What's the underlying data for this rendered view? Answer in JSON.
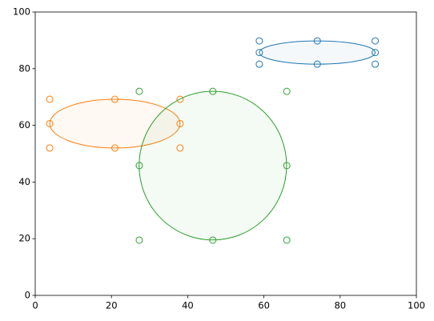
{
  "chart_data": {
    "type": "scatter",
    "xlim": [
      0,
      100
    ],
    "ylim": [
      0,
      100
    ],
    "xticks": [
      0,
      20,
      40,
      60,
      80,
      100
    ],
    "yticks": [
      0,
      20,
      40,
      60,
      80,
      100
    ],
    "series": [
      {
        "color": "#1f77b4",
        "x": [
          58.8,
          74,
          89.2,
          58.8,
          89.2,
          58.8,
          74,
          89.2
        ],
        "y": [
          89.8,
          89.8,
          89.8,
          85.7,
          85.7,
          81.6,
          81.6,
          81.6
        ],
        "ellipse": {
          "cx": 74,
          "cy": 85.7,
          "rx": 15.2,
          "ry": 4.1
        }
      },
      {
        "color": "#ff7f0e",
        "x": [
          3.8,
          20.9,
          38,
          3.8,
          38,
          3.8,
          20.9,
          38
        ],
        "y": [
          69.2,
          69.2,
          69.2,
          60.6,
          60.6,
          52,
          52,
          52
        ],
        "ellipse": {
          "cx": 20.9,
          "cy": 60.6,
          "rx": 17.1,
          "ry": 8.6
        }
      },
      {
        "color": "#2ca02c",
        "x": [
          27.3,
          46.6,
          66,
          27.3,
          66,
          27.3,
          46.6,
          66
        ],
        "y": [
          72,
          72,
          72,
          45.8,
          45.8,
          19.5,
          19.5,
          19.5
        ],
        "ellipse": {
          "cx": 46.6,
          "cy": 45.8,
          "rx": 19.35,
          "ry": 26.25
        }
      }
    ]
  }
}
